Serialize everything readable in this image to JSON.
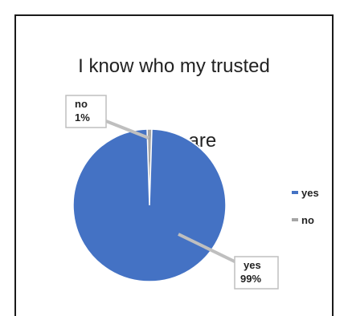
{
  "chart_data": {
    "type": "pie",
    "title": "I know who my trusted adults are",
    "title_lines": [
      "I know who my trusted",
      "adults are"
    ],
    "categories": [
      "yes",
      "no"
    ],
    "values": [
      99,
      1
    ],
    "data_labels": [
      {
        "category": "yes",
        "value": "99%"
      },
      {
        "category": "no",
        "value": "1%"
      }
    ],
    "colors": {
      "yes": "#4472C4",
      "no": "#A5A5A5"
    },
    "legend": {
      "position": "right",
      "entries": [
        "yes",
        "no"
      ]
    }
  }
}
